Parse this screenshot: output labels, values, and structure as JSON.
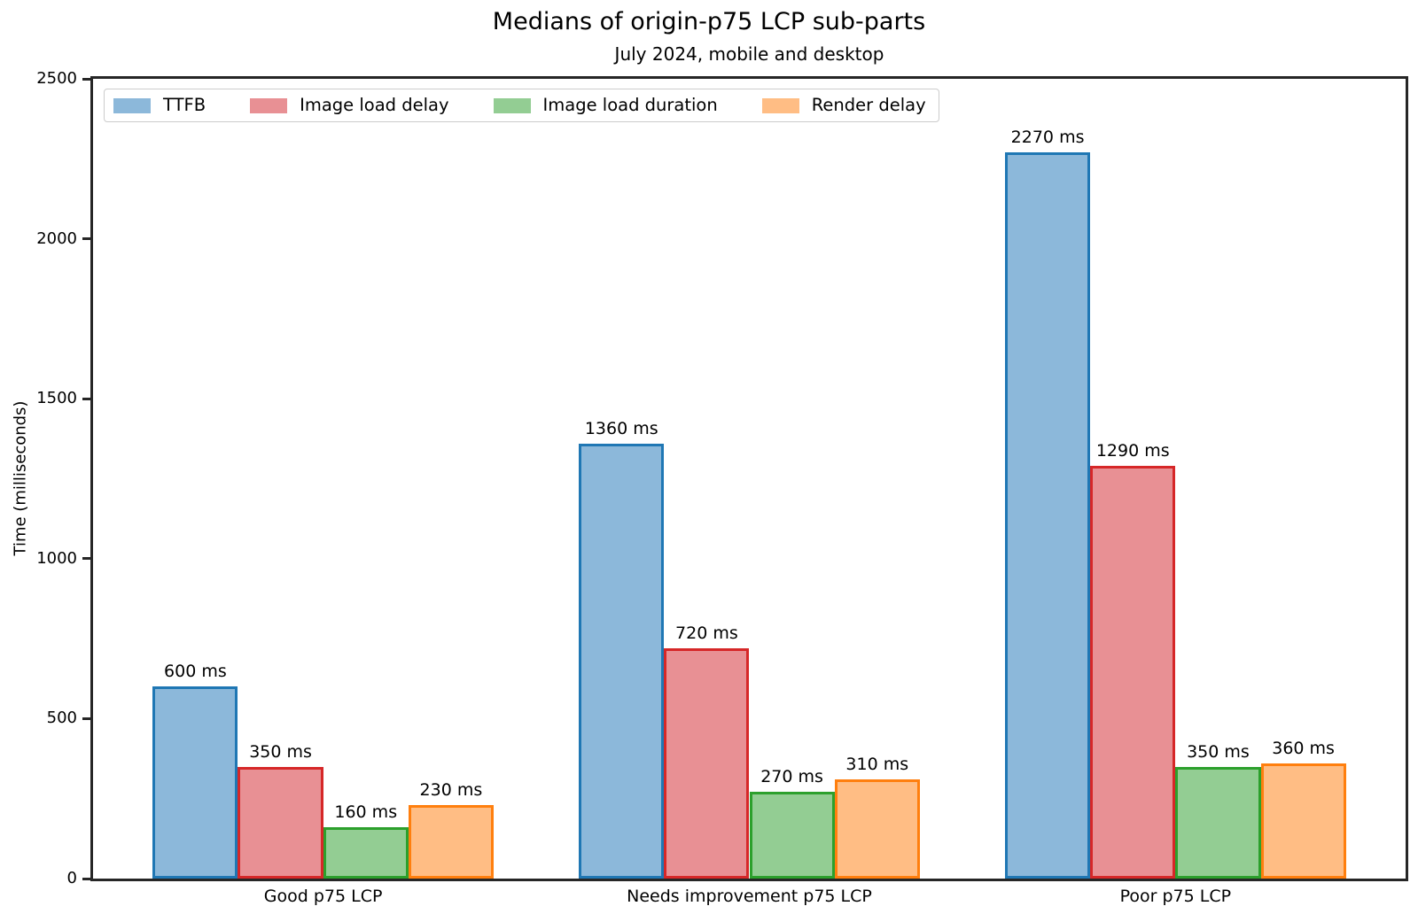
{
  "chart_data": {
    "type": "bar",
    "title": "Medians of origin-p75 LCP sub-parts",
    "subtitle": "July 2024, mobile and desktop",
    "ylabel": "Time (milliseconds)",
    "xlabel": "",
    "ylim": [
      0,
      2500
    ],
    "yticks": [
      0,
      500,
      1000,
      1500,
      2000,
      2500
    ],
    "grid": false,
    "legend_position": "upper left",
    "bar_label_suffix": " ms",
    "categories": [
      "Good p75 LCP",
      "Needs improvement p75 LCP",
      "Poor p75 LCP"
    ],
    "series": [
      {
        "name": "TTFB",
        "values": [
          600,
          1360,
          2270
        ],
        "fill": "#8cb8da",
        "edge": "#1f77b4"
      },
      {
        "name": "Image load delay",
        "values": [
          350,
          720,
          1290
        ],
        "fill": "#e89094",
        "edge": "#d62728"
      },
      {
        "name": "Image load duration",
        "values": [
          160,
          270,
          350
        ],
        "fill": "#93cd93",
        "edge": "#2ca02c"
      },
      {
        "name": "Render delay",
        "values": [
          230,
          310,
          360
        ],
        "fill": "#ffbd84",
        "edge": "#ff7f0e"
      }
    ]
  }
}
